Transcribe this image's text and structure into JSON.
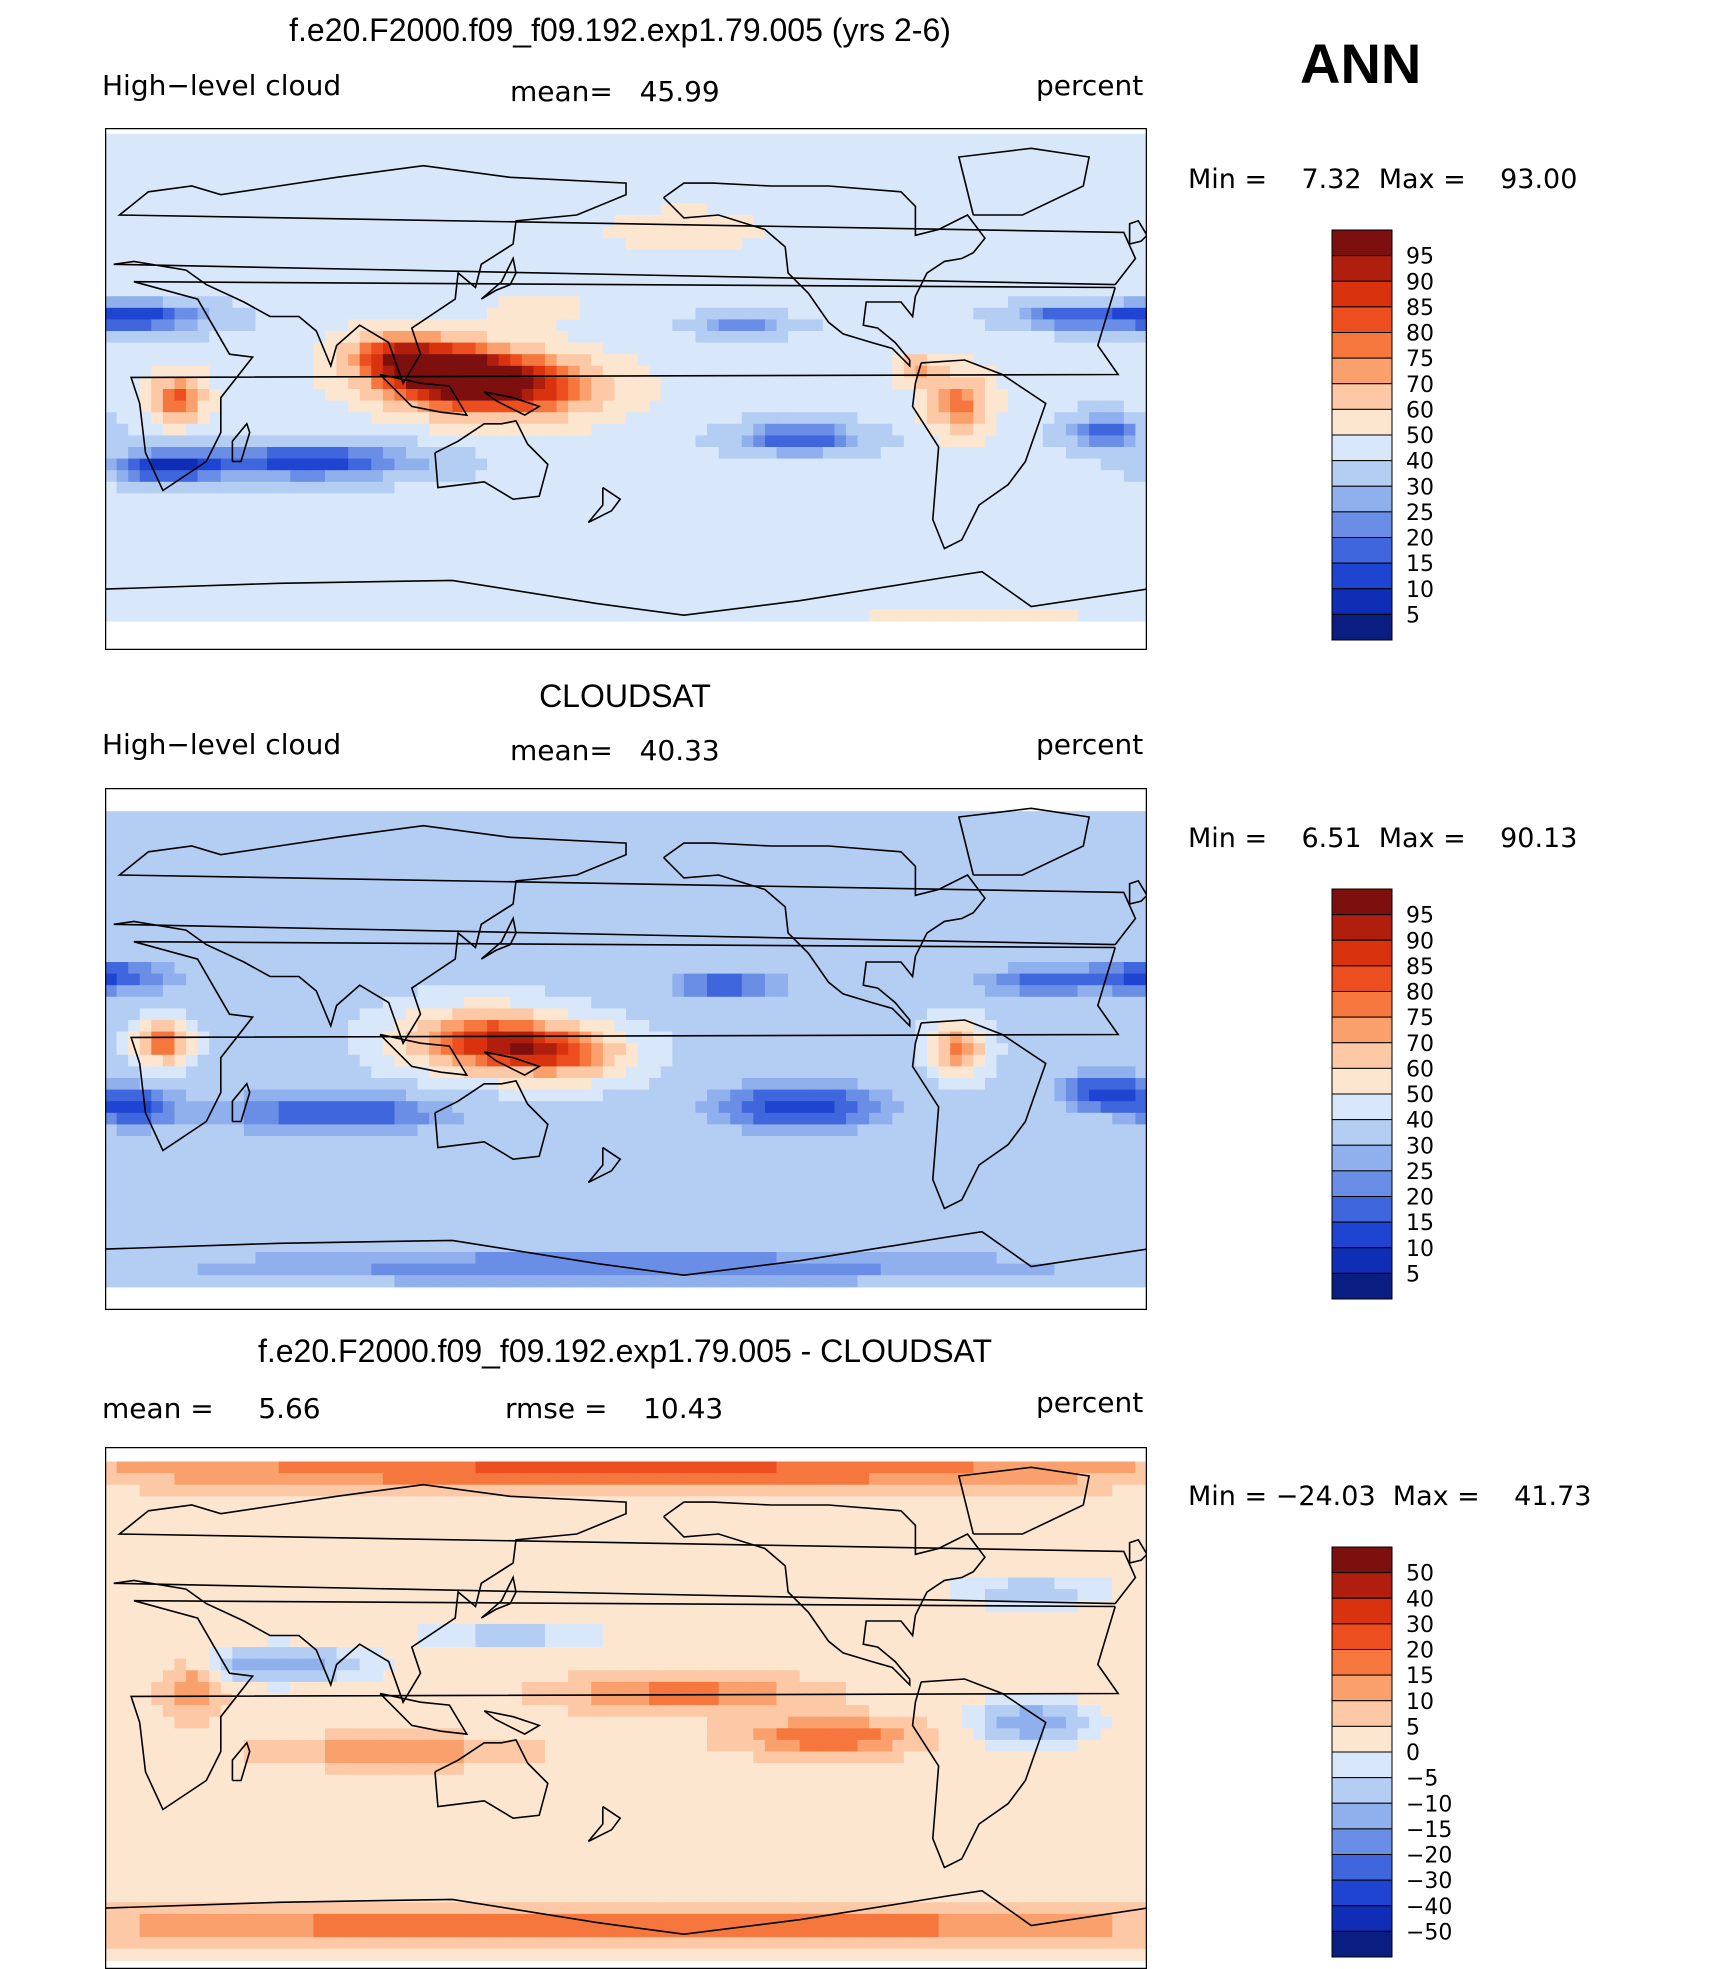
{
  "season": "ANN",
  "units": "percent",
  "panels": [
    {
      "title": "f.e20.F2000.f09_f09.192.exp1.79.005 (yrs 2-6)",
      "left_label": "High−level cloud",
      "center_label": "mean=   45.99",
      "right_label": "percent",
      "minmax": "Min =    7.32  Max =    93.00"
    },
    {
      "title": "CLOUDSAT",
      "left_label": "High−level cloud",
      "center_label": "mean=   40.33",
      "right_label": "percent",
      "minmax": "Min =    6.51  Max =    90.13"
    },
    {
      "title": "f.e20.F2000.f09_f09.192.exp1.79.005 - CLOUDSAT",
      "left_label": "mean =     5.66",
      "center_label": "rmse =    10.43",
      "right_label": "percent",
      "minmax": "Min = −24.03  Max =    41.73"
    }
  ],
  "chart_data": [
    {
      "type": "heatmap",
      "title": "f.e20.F2000.f09_f09.192.exp1.79.005 (yrs 2-6)",
      "variable": "High−level cloud",
      "units": "percent",
      "mean": 45.99,
      "min": 7.32,
      "max": 93.0,
      "colorbar": {
        "labels": [
          "95",
          "90",
          "85",
          "80",
          "75",
          "70",
          "60",
          "50",
          "40",
          "30",
          "25",
          "20",
          "15",
          "10",
          "5"
        ],
        "colors": [
          "#7d0f0f",
          "#b01e0e",
          "#d8320f",
          "#ec4e1f",
          "#f5773e",
          "#f9a06d",
          "#fcc8a5",
          "#fde6d0",
          "#d8e8fa",
          "#b4cdf2",
          "#8fb0ec",
          "#6a8ee6",
          "#3f66dc",
          "#1e44d1",
          "#0f2eb5",
          "#0a1e82"
        ]
      },
      "blobs": [
        {
          "lon": 120,
          "lat": 5,
          "v": 88,
          "rx": 30,
          "ry": 12
        },
        {
          "lon": 145,
          "lat": 0,
          "v": 80,
          "rx": 35,
          "ry": 12
        },
        {
          "lon": 25,
          "lat": -3,
          "v": 82,
          "rx": 10,
          "ry": 9
        },
        {
          "lon": 100,
          "lat": 12,
          "v": 74,
          "rx": 20,
          "ry": 9
        },
        {
          "lon": 295,
          "lat": -5,
          "v": 78,
          "rx": 12,
          "ry": 12
        },
        {
          "lon": 280,
          "lat": 7,
          "v": 70,
          "rx": 8,
          "ry": 5
        },
        {
          "lon": 70,
          "lat": -25,
          "v": 12,
          "rx": 45,
          "ry": 7
        },
        {
          "lon": 20,
          "lat": -27,
          "v": 15,
          "rx": 18,
          "ry": 6
        },
        {
          "lon": 240,
          "lat": -17,
          "v": 14,
          "rx": 25,
          "ry": 6
        },
        {
          "lon": 345,
          "lat": -15,
          "v": 16,
          "rx": 15,
          "ry": 7
        },
        {
          "lon": 10,
          "lat": 25,
          "v": 12,
          "rx": 30,
          "ry": 6
        },
        {
          "lon": 220,
          "lat": 22,
          "v": 22,
          "rx": 20,
          "ry": 4
        },
        {
          "lon": 330,
          "lat": 25,
          "v": 22,
          "rx": 22,
          "ry": 5
        },
        {
          "lon": 150,
          "lat": 28,
          "v": 60,
          "rx": 15,
          "ry": 5
        },
        {
          "lon": 200,
          "lat": 55,
          "v": 58,
          "rx": 30,
          "ry": 8
        },
        {
          "lon": 300,
          "lat": -80,
          "v": 60,
          "rx": 40,
          "ry": 6
        }
      ]
    },
    {
      "type": "heatmap",
      "title": "CLOUDSAT",
      "variable": "High−level cloud",
      "units": "percent",
      "mean": 40.33,
      "min": 6.51,
      "max": 90.13,
      "colorbar": {
        "labels": [
          "95",
          "90",
          "85",
          "80",
          "75",
          "70",
          "60",
          "50",
          "40",
          "30",
          "25",
          "20",
          "15",
          "10",
          "5"
        ],
        "colors": [
          "#7d0f0f",
          "#b01e0e",
          "#d8320f",
          "#ec4e1f",
          "#f5773e",
          "#f9a06d",
          "#fcc8a5",
          "#fde6d0",
          "#d8e8fa",
          "#b4cdf2",
          "#8fb0ec",
          "#6a8ee6",
          "#3f66dc",
          "#1e44d1",
          "#0f2eb5",
          "#0a1e82"
        ]
      },
      "blobs": [
        {
          "lon": 130,
          "lat": 3,
          "v": 84,
          "rx": 30,
          "ry": 12
        },
        {
          "lon": 160,
          "lat": -2,
          "v": 72,
          "rx": 25,
          "ry": 10
        },
        {
          "lon": 20,
          "lat": 2,
          "v": 80,
          "rx": 10,
          "ry": 8
        },
        {
          "lon": 295,
          "lat": 0,
          "v": 78,
          "rx": 10,
          "ry": 10
        },
        {
          "lon": 240,
          "lat": -20,
          "v": 10,
          "rx": 30,
          "ry": 8
        },
        {
          "lon": 80,
          "lat": -22,
          "v": 14,
          "rx": 40,
          "ry": 7
        },
        {
          "lon": 10,
          "lat": -20,
          "v": 12,
          "rx": 15,
          "ry": 7
        },
        {
          "lon": 345,
          "lat": -15,
          "v": 12,
          "rx": 15,
          "ry": 7
        },
        {
          "lon": 0,
          "lat": 25,
          "v": 14,
          "rx": 25,
          "ry": 6
        },
        {
          "lon": 215,
          "lat": 22,
          "v": 15,
          "rx": 20,
          "ry": 5
        },
        {
          "lon": 320,
          "lat": 23,
          "v": 20,
          "rx": 22,
          "ry": 5
        },
        {
          "lon": 200,
          "lat": 85,
          "v": 15,
          "rx": 180,
          "ry": 4
        },
        {
          "lon": 180,
          "lat": -75,
          "v": 20,
          "rx": 150,
          "ry": 6
        }
      ]
    },
    {
      "type": "heatmap",
      "title": "f.e20.F2000.f09_f09.192.exp1.79.005 - CLOUDSAT",
      "units": "percent",
      "mean": 5.66,
      "rmse": 10.43,
      "min": -24.03,
      "max": 41.73,
      "colorbar": {
        "labels": [
          "50",
          "40",
          "30",
          "20",
          "15",
          "10",
          "5",
          "0",
          "−5",
          "−10",
          "−15",
          "−20",
          "−30",
          "−40",
          "−50"
        ],
        "colors": [
          "#7d0f0f",
          "#b01e0e",
          "#d8320f",
          "#ec4e1f",
          "#f5773e",
          "#f9a06d",
          "#fcc8a5",
          "#fde6d0",
          "#d8e8fa",
          "#b4cdf2",
          "#8fb0ec",
          "#6a8ee6",
          "#3f66dc",
          "#1e44d1",
          "#0f2eb5",
          "#0a1e82"
        ]
      },
      "blobs": [
        {
          "lon": 180,
          "lat": 82,
          "v": 22,
          "rx": 180,
          "ry": 6
        },
        {
          "lon": 180,
          "lat": -75,
          "v": 22,
          "rx": 180,
          "ry": 6
        },
        {
          "lon": 200,
          "lat": 5,
          "v": 18,
          "rx": 40,
          "ry": 6
        },
        {
          "lon": 250,
          "lat": -10,
          "v": 20,
          "rx": 30,
          "ry": 6
        },
        {
          "lon": 100,
          "lat": -15,
          "v": 15,
          "rx": 40,
          "ry": 5
        },
        {
          "lon": 30,
          "lat": 8,
          "v": 15,
          "rx": 10,
          "ry": 12
        },
        {
          "lon": 60,
          "lat": 15,
          "v": -15,
          "rx": 30,
          "ry": 6
        },
        {
          "lon": 320,
          "lat": -5,
          "v": -15,
          "rx": 20,
          "ry": 8
        },
        {
          "lon": 140,
          "lat": 25,
          "v": -8,
          "rx": 30,
          "ry": 5
        },
        {
          "lon": 320,
          "lat": 40,
          "v": -10,
          "rx": 25,
          "ry": 5
        }
      ]
    }
  ]
}
